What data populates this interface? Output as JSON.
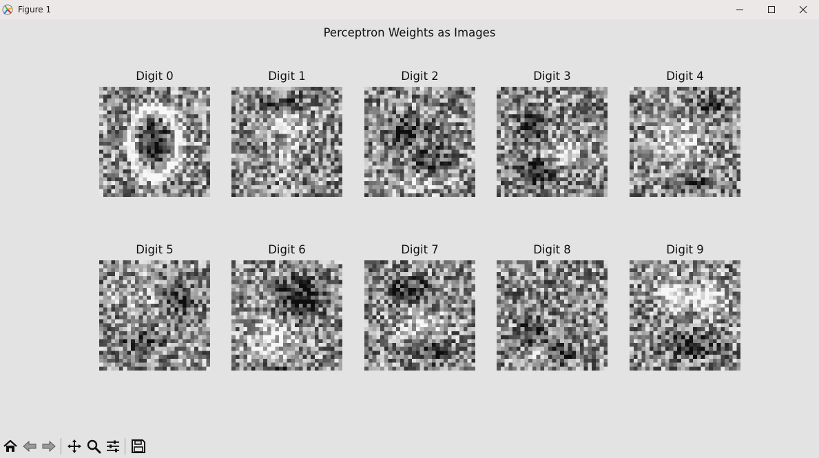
{
  "window": {
    "title": "Figure 1",
    "icon": "matplotlib-icon",
    "controls": [
      "minimize-icon",
      "maximize-icon",
      "close-icon"
    ]
  },
  "figure": {
    "title": "Perceptron Weights as Images",
    "colormap": "gray",
    "image_resolution": [
      28,
      28
    ],
    "panels": [
      {
        "title": "Digit 0"
      },
      {
        "title": "Digit 1"
      },
      {
        "title": "Digit 2"
      },
      {
        "title": "Digit 3"
      },
      {
        "title": "Digit 4"
      },
      {
        "title": "Digit 5"
      },
      {
        "title": "Digit 6"
      },
      {
        "title": "Digit 7"
      },
      {
        "title": "Digit 8"
      },
      {
        "title": "Digit 9"
      }
    ]
  },
  "toolbar": {
    "buttons": [
      "home-icon",
      "back-icon",
      "forward-icon",
      "pan-icon",
      "zoom-icon",
      "configure-subplots-icon",
      "save-icon"
    ]
  }
}
